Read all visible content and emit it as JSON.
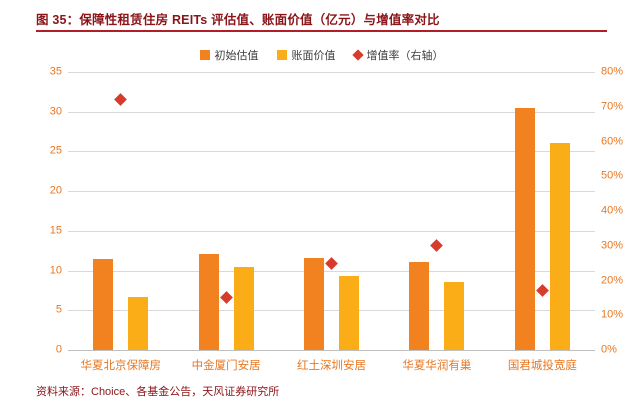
{
  "title": "图 35：保障性租赁住房 REITs 评估值、账面价值（亿元）与增值率对比",
  "source": "资料来源：Choice、各基金公告，天风证券研究所",
  "colors": {
    "title": "#8B1418",
    "divider": "#B21E28",
    "axis_text": "#E87722",
    "grid": "#D9D9D9",
    "baseline": "#BFBFBF",
    "legend_text": "#404040",
    "bar_initial": "#F28220",
    "bar_book": "#FBAD18",
    "diamond": "#D83B2B"
  },
  "chart_data": {
    "type": "bar",
    "title": "保障性租赁住房 REITs 评估值、账面价值（亿元）与增值率对比",
    "categories": [
      "华夏北京保障房",
      "中金厦门安居",
      "红土深圳安居",
      "华夏华润有巢",
      "国君城投宽庭"
    ],
    "series": [
      {
        "key": "initial-valuation",
        "name": "初始估值",
        "kind": "bar",
        "axis": "left",
        "unit": "亿元",
        "color": "#F28220",
        "values": [
          11.5,
          12.1,
          11.6,
          11.1,
          30.5
        ]
      },
      {
        "key": "book-value",
        "name": "账面价值",
        "kind": "bar",
        "axis": "left",
        "unit": "亿元",
        "color": "#FBAD18",
        "values": [
          6.7,
          10.5,
          9.3,
          8.6,
          26.1
        ]
      },
      {
        "key": "premium-rate",
        "name": "增值率（右轴）",
        "kind": "scatter",
        "axis": "right",
        "unit": "%",
        "color": "#D83B2B",
        "values": [
          72,
          15,
          25,
          30,
          17
        ]
      }
    ],
    "left_axis": {
      "min": 0,
      "max": 35,
      "labels": [
        "0",
        "5",
        "10",
        "15",
        "20",
        "25",
        "30",
        "35"
      ]
    },
    "right_axis": {
      "min": 0,
      "max": 80,
      "labels": [
        "0%",
        "10%",
        "20%",
        "30%",
        "40%",
        "50%",
        "60%",
        "70%",
        "80%"
      ]
    },
    "grid": true,
    "legend_position": "top"
  }
}
